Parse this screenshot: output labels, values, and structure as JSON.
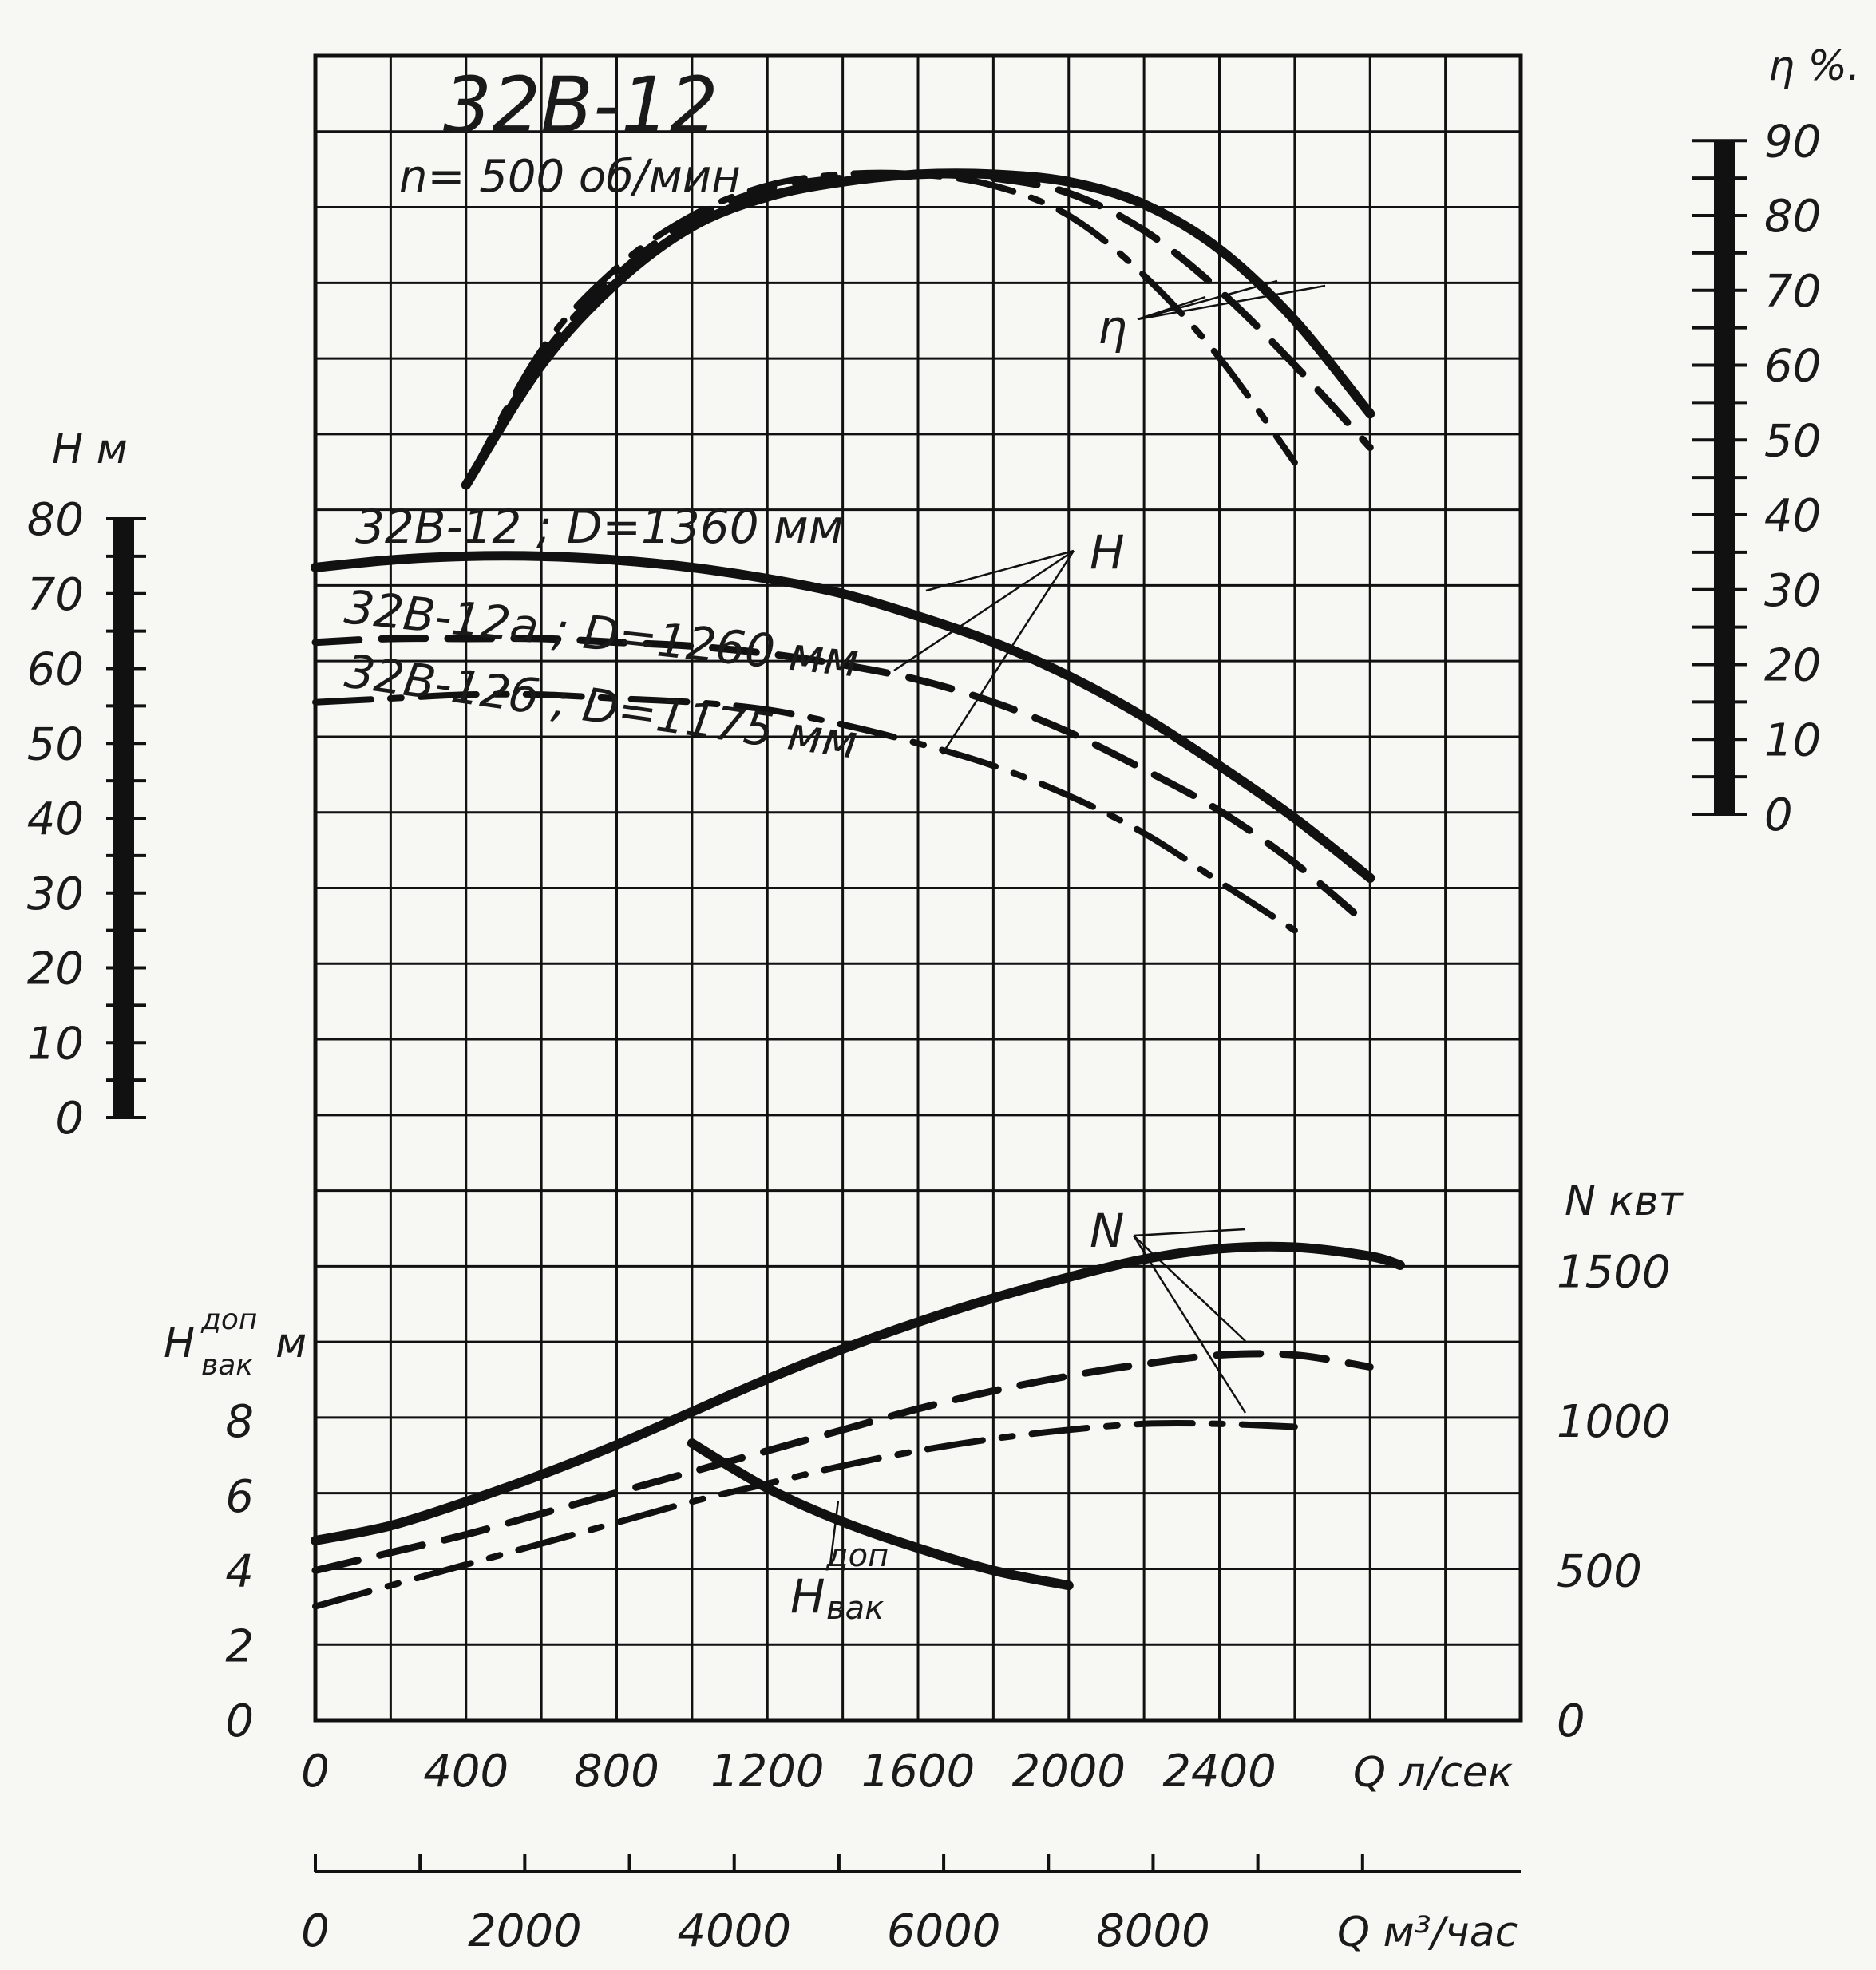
{
  "title": "32В-12",
  "subtitle": "n= 500 об/мин",
  "chart_data": {
    "type": "line",
    "x_axis": {
      "label": "Q л/сек",
      "range": [
        0,
        3200
      ],
      "ticks": [
        0,
        400,
        800,
        1200,
        1600,
        2000,
        2400
      ]
    },
    "x_axis_secondary": {
      "label": "Q м³/час",
      "ticks": [
        0,
        2000,
        4000,
        6000,
        8000
      ]
    },
    "y_axes": {
      "head": {
        "label": "H м",
        "range": [
          0,
          80
        ],
        "ticks": [
          0,
          10,
          20,
          30,
          40,
          50,
          60,
          70,
          80
        ]
      },
      "efficiency": {
        "label": "η %.",
        "range": [
          0,
          90
        ],
        "ticks": [
          0,
          10,
          20,
          30,
          40,
          50,
          60,
          70,
          80,
          90
        ]
      },
      "power": {
        "label": "N квт",
        "range": [
          0,
          1500
        ],
        "ticks": [
          0,
          500,
          1000,
          1500
        ]
      },
      "vacuum": {
        "label_main": "H",
        "label_sup": "доп",
        "label_sub": "вак",
        "label_unit": "м",
        "ticks": [
          0,
          2,
          4,
          6,
          8
        ]
      }
    },
    "curve_labels": {
      "eta": "η",
      "head": "H",
      "power": "N",
      "vacuum_main": "H",
      "vacuum_sup": "доп",
      "vacuum_sub": "вак"
    },
    "variants": [
      {
        "label": "32В-12 ; D=1360 мм",
        "style": "solid"
      },
      {
        "label": "32В-12а ; D=1260 мм",
        "style": "dashed"
      },
      {
        "label": "32В-12б ; D=1175 мм",
        "style": "dash-dot"
      }
    ],
    "series": [
      {
        "curve": "head",
        "variant": 0,
        "x": [
          0,
          200,
          400,
          600,
          800,
          1000,
          1200,
          1400,
          1600,
          1800,
          2000,
          2200,
          2400,
          2600,
          2800
        ],
        "y": [
          73.5,
          74.5,
          75,
          75,
          74.5,
          73.5,
          72,
          70,
          67,
          63.5,
          59,
          53.5,
          47,
          40,
          32
        ]
      },
      {
        "curve": "head",
        "variant": 1,
        "x": [
          0,
          200,
          400,
          600,
          800,
          1000,
          1200,
          1400,
          1600,
          1800,
          2000,
          2200,
          2400,
          2600,
          2800
        ],
        "y": [
          63.5,
          64,
          64,
          64,
          63.5,
          63,
          62,
          60.5,
          58.5,
          55.5,
          51.5,
          46.5,
          41,
          34,
          25.5
        ]
      },
      {
        "curve": "head",
        "variant": 2,
        "x": [
          0,
          200,
          400,
          600,
          800,
          1000,
          1200,
          1400,
          1600,
          1800,
          2000,
          2200,
          2400,
          2600
        ],
        "y": [
          55.5,
          56,
          56.5,
          56.5,
          56,
          55.5,
          54.5,
          52.5,
          50,
          47,
          43,
          38,
          31.5,
          25
        ]
      },
      {
        "curve": "efficiency",
        "variant": 0,
        "x": [
          400,
          600,
          800,
          1000,
          1200,
          1400,
          1600,
          1800,
          2000,
          2200,
          2400,
          2600,
          2800
        ],
        "y": [
          44,
          60,
          71,
          78.5,
          82.5,
          84.5,
          85.5,
          85.5,
          84.5,
          81.5,
          75.5,
          66,
          53.5
        ]
      },
      {
        "curve": "efficiency",
        "variant": 1,
        "x": [
          400,
          600,
          800,
          1000,
          1200,
          1400,
          1600,
          1800,
          2000,
          2200,
          2400,
          2600,
          2800
        ],
        "y": [
          44,
          61,
          72,
          79.5,
          83.5,
          85,
          85.5,
          85,
          83,
          78,
          70,
          60,
          49
        ]
      },
      {
        "curve": "efficiency",
        "variant": 2,
        "x": [
          400,
          600,
          800,
          1000,
          1200,
          1400,
          1600,
          1800,
          2000,
          2200,
          2400,
          2600
        ],
        "y": [
          44,
          62,
          73,
          80,
          84,
          85.5,
          85.5,
          84,
          80,
          72,
          61,
          47
        ]
      },
      {
        "curve": "power",
        "variant": 0,
        "x": [
          0,
          200,
          400,
          600,
          800,
          1000,
          1200,
          1400,
          1600,
          1800,
          2000,
          2200,
          2400,
          2600,
          2800,
          2880
        ],
        "y": [
          600,
          650,
          730,
          820,
          920,
          1030,
          1140,
          1240,
          1330,
          1410,
          1480,
          1540,
          1575,
          1580,
          1550,
          1520
        ]
      },
      {
        "curve": "power",
        "variant": 1,
        "x": [
          0,
          200,
          400,
          600,
          800,
          1000,
          1200,
          1400,
          1600,
          1800,
          2000,
          2200,
          2400,
          2600,
          2800
        ],
        "y": [
          500,
          560,
          620,
          690,
          760,
          830,
          900,
          970,
          1040,
          1100,
          1150,
          1190,
          1220,
          1220,
          1180
        ]
      },
      {
        "curve": "power",
        "variant": 2,
        "x": [
          0,
          200,
          400,
          600,
          800,
          1000,
          1200,
          1400,
          1600,
          1800,
          2000,
          2200,
          2400,
          2600
        ],
        "y": [
          380,
          450,
          520,
          590,
          660,
          730,
          790,
          850,
          900,
          940,
          970,
          990,
          990,
          980
        ]
      },
      {
        "curve": "vacuum",
        "variant": 0,
        "x": [
          1000,
          1200,
          1400,
          1600,
          1800,
          2000
        ],
        "y": [
          7.4,
          6.2,
          5.3,
          4.6,
          4.0,
          3.6
        ]
      }
    ]
  }
}
